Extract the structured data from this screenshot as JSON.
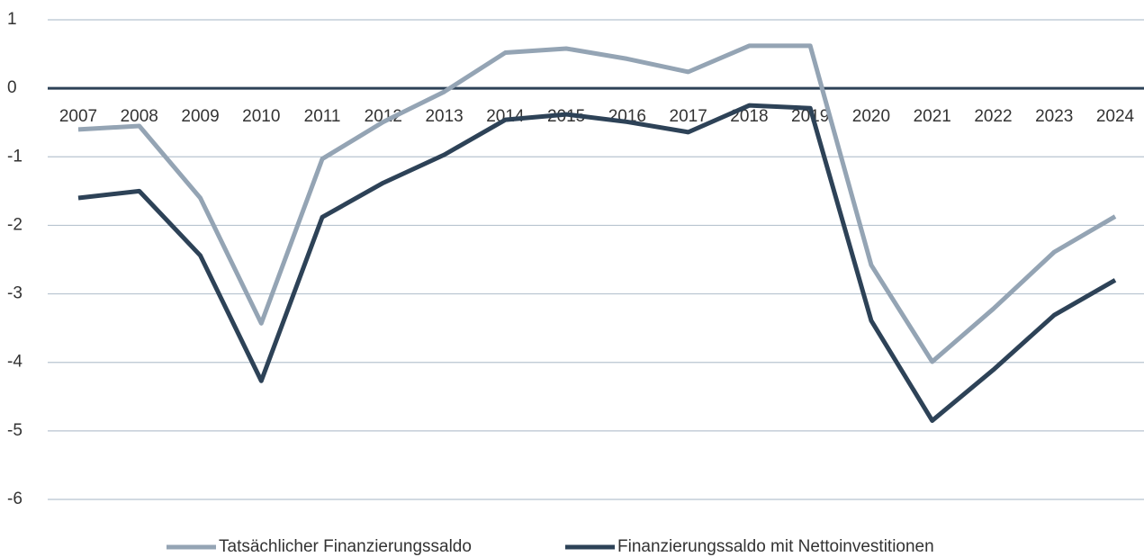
{
  "chart_data": {
    "type": "line",
    "categories": [
      "2007",
      "2008",
      "2009",
      "2010",
      "2011",
      "2012",
      "2013",
      "2014",
      "2015",
      "2016",
      "2017",
      "2018",
      "2019",
      "2020",
      "2021",
      "2022",
      "2023",
      "2024"
    ],
    "series": [
      {
        "name": "Tatsächlicher Finanzierungssaldo",
        "color": "#94a4b4",
        "values": [
          -0.6,
          -0.55,
          -1.6,
          -3.43,
          -1.03,
          -0.49,
          -0.05,
          0.52,
          0.58,
          0.43,
          0.24,
          0.62,
          0.62,
          -2.58,
          -3.99,
          -3.22,
          -2.39,
          -1.87
        ]
      },
      {
        "name": "Finanzierungssaldo mit Nettoinvestitionen",
        "color": "#2d4257",
        "values": [
          -1.6,
          -1.5,
          -2.44,
          -4.27,
          -1.88,
          -1.38,
          -0.97,
          -0.46,
          -0.38,
          -0.49,
          -0.64,
          -0.25,
          -0.29,
          -3.39,
          -4.85,
          -4.11,
          -3.31,
          -2.8
        ]
      }
    ],
    "ylim": [
      -6,
      1
    ],
    "yticks": [
      -6,
      -5,
      -4,
      -3,
      -2,
      -1,
      0,
      1
    ],
    "grid": true,
    "legend": "bottom"
  }
}
